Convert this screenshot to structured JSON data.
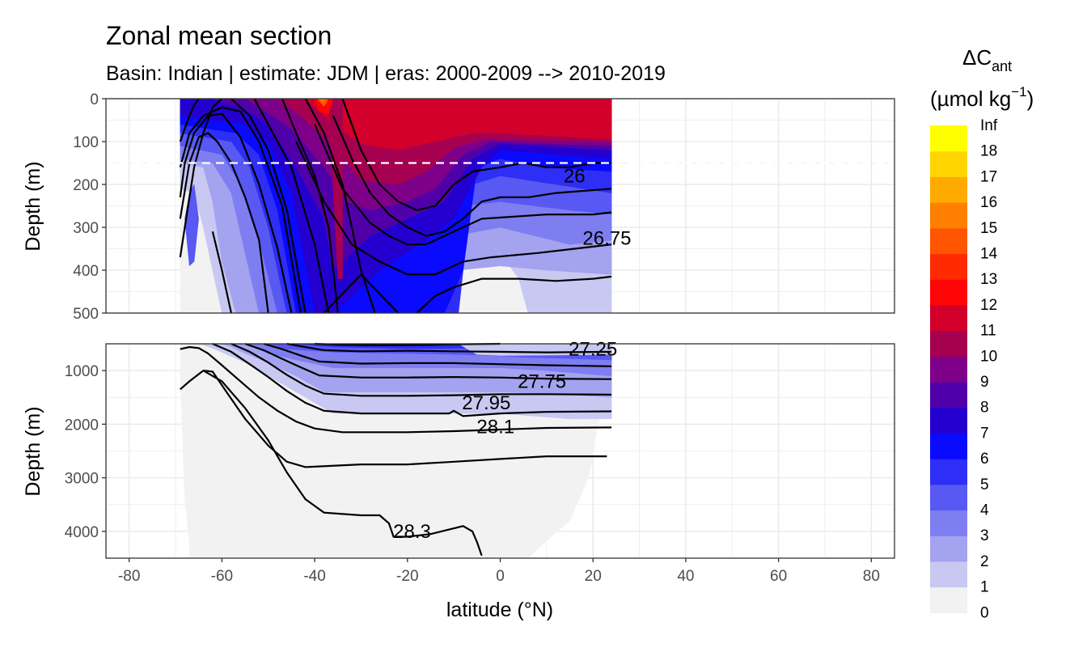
{
  "chart_data": {
    "type": "contour",
    "title": "Zonal mean section",
    "subtitle": "Basin: Indian | estimate: JDM  | eras: 2000-2009 --> 2010-2019",
    "xlabel": "latitude (°N)",
    "ylabel_top": "Depth (m)",
    "ylabel_bottom": "Depth (m)",
    "xlim": [
      -85,
      85
    ],
    "x_ticks": [
      -80,
      -60,
      -40,
      -20,
      0,
      20,
      40,
      60,
      80
    ],
    "x_tick_labels": [
      "-80",
      "-60",
      "-40",
      "-20",
      "0",
      "20",
      "40",
      "60",
      "80"
    ],
    "panels": [
      {
        "name": "upper",
        "ylim": [
          0,
          500
        ],
        "y_ticks": [
          0,
          100,
          200,
          300,
          400,
          500
        ],
        "y_tick_labels": [
          "0",
          "100",
          "200",
          "300",
          "400",
          "500"
        ],
        "reference_line_depth": 150
      },
      {
        "name": "lower",
        "ylim": [
          500,
          4500
        ],
        "y_ticks": [
          1000,
          2000,
          3000,
          4000
        ],
        "y_tick_labels": [
          "1000",
          "2000",
          "3000",
          "4000"
        ]
      }
    ],
    "data_extent_lat": [
      -69,
      24
    ],
    "legend": {
      "title_main": "ΔC",
      "title_sub": "ant",
      "unit_main": "(µmol kg",
      "unit_sup": "−1",
      "unit_close": ")",
      "levels": [
        "0",
        "1",
        "2",
        "3",
        "4",
        "5",
        "6",
        "7",
        "8",
        "9",
        "10",
        "11",
        "12",
        "13",
        "14",
        "15",
        "16",
        "17",
        "18",
        "Inf"
      ],
      "colors": [
        "#f2f2f2",
        "#c8c8f2",
        "#a3a3f0",
        "#7e7ef0",
        "#5858f3",
        "#2e2ef6",
        "#0a0aff",
        "#2400d0",
        "#5000a8",
        "#7e0088",
        "#a60050",
        "#d2002a",
        "#ff0505",
        "#ff2a00",
        "#ff5500",
        "#ff7f00",
        "#ffaa00",
        "#ffd400",
        "#ffff00"
      ]
    },
    "density_contours": [
      {
        "label": "26",
        "panel": "upper",
        "lat": 16,
        "depth": 180
      },
      {
        "label": "26.75",
        "panel": "upper",
        "lat": 23,
        "depth": 325
      },
      {
        "label": "27.25",
        "panel": "lower",
        "lat": 20,
        "depth": 600
      },
      {
        "label": "27.75",
        "panel": "lower",
        "lat": 9,
        "depth": 1200
      },
      {
        "label": "27.95",
        "panel": "lower",
        "lat": -3,
        "depth": 1600
      },
      {
        "label": "28.1",
        "panel": "lower",
        "lat": -1,
        "depth": 2050
      },
      {
        "label": "28.3",
        "panel": "lower",
        "lat": -19,
        "depth": 4000
      }
    ]
  }
}
